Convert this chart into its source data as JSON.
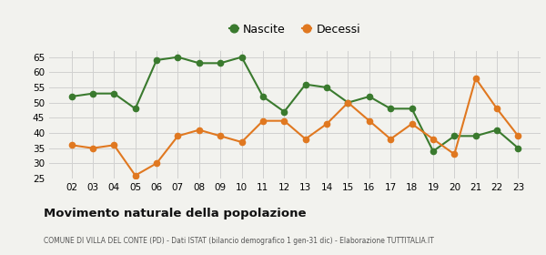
{
  "years": [
    "02",
    "03",
    "04",
    "05",
    "06",
    "07",
    "08",
    "09",
    "10",
    "11",
    "12",
    "13",
    "14",
    "15",
    "16",
    "17",
    "18",
    "19",
    "20",
    "21",
    "22",
    "23"
  ],
  "nascite": [
    52,
    53,
    53,
    48,
    64,
    65,
    63,
    63,
    65,
    52,
    47,
    56,
    55,
    50,
    52,
    48,
    48,
    34,
    39,
    39,
    41,
    35
  ],
  "decessi": [
    36,
    35,
    36,
    26,
    30,
    39,
    41,
    39,
    37,
    44,
    44,
    38,
    43,
    50,
    44,
    38,
    43,
    38,
    33,
    58,
    48,
    39
  ],
  "nascite_color": "#3a7a2e",
  "decessi_color": "#e07820",
  "bg_color": "#f2f2ee",
  "grid_color": "#d0d0d0",
  "title": "Movimento naturale della popolazione",
  "subtitle": "COMUNE DI VILLA DEL CONTE (PD) - Dati ISTAT (bilancio demografico 1 gen-31 dic) - Elaborazione TUTTITALIA.IT",
  "legend_nascite": "Nascite",
  "legend_decessi": "Decessi",
  "ylim": [
    25,
    67
  ],
  "yticks": [
    25,
    30,
    35,
    40,
    45,
    50,
    55,
    60,
    65
  ]
}
